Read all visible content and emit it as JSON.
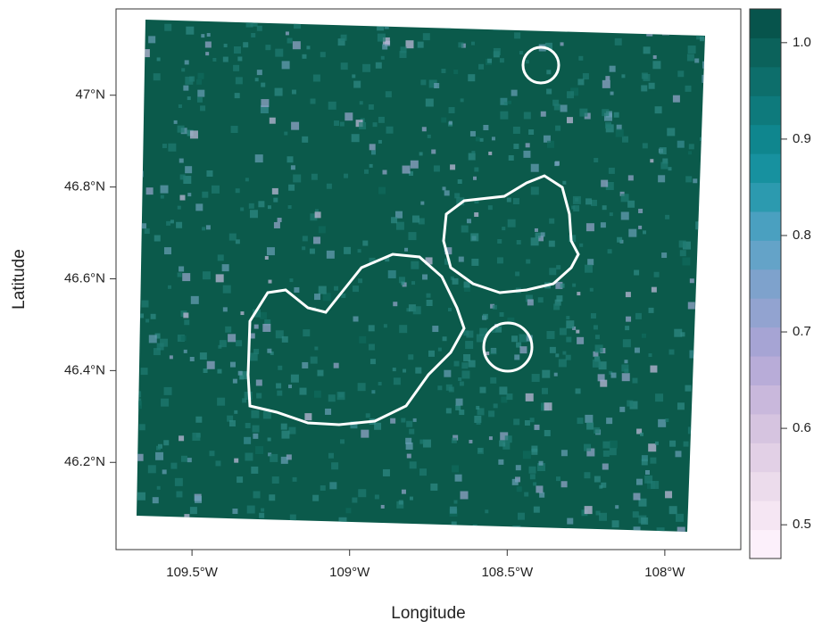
{
  "chart_data": {
    "type": "raster",
    "x_label": "Longitude",
    "y_label": "Latitude",
    "xlim": [
      -109.741,
      -107.759
    ],
    "xticks": [
      {
        "value": -109.5,
        "label": "109.5°W"
      },
      {
        "value": -109,
        "label": "109°W"
      },
      {
        "value": -108.5,
        "label": "108.5°W"
      },
      {
        "value": -108,
        "label": "108°W"
      }
    ],
    "ylim": [
      46.01,
      47.188
    ],
    "yticks": [
      {
        "value": 46.2,
        "label": "46.2°N"
      },
      {
        "value": 46.4,
        "label": "46.4°N"
      },
      {
        "value": 46.6,
        "label": "46.6°N"
      },
      {
        "value": 46.8,
        "label": "46.8°N"
      },
      {
        "value": 47,
        "label": "47°N"
      }
    ],
    "colorbar": {
      "lim": [
        0.465,
        1.035
      ],
      "ticks": [
        0.5,
        0.6,
        0.7,
        0.8,
        0.9,
        {
          "value": 1.0,
          "label": "1.0"
        }
      ],
      "colors": [
        "#fcf0fb",
        "#f5e6f3",
        "#ecdcec",
        "#e2d0e6",
        "#d6c4e0",
        "#c9b8dc",
        "#b8acd8",
        "#a6a4d4",
        "#92a3d0",
        "#7ea2cc",
        "#64a3c8",
        "#4aa0c0",
        "#2c9aaf",
        "#17919f",
        "#0f868e",
        "#0e7a7c",
        "#0d6e6b",
        "#0b625b",
        "#07544c"
      ]
    }
  }
}
